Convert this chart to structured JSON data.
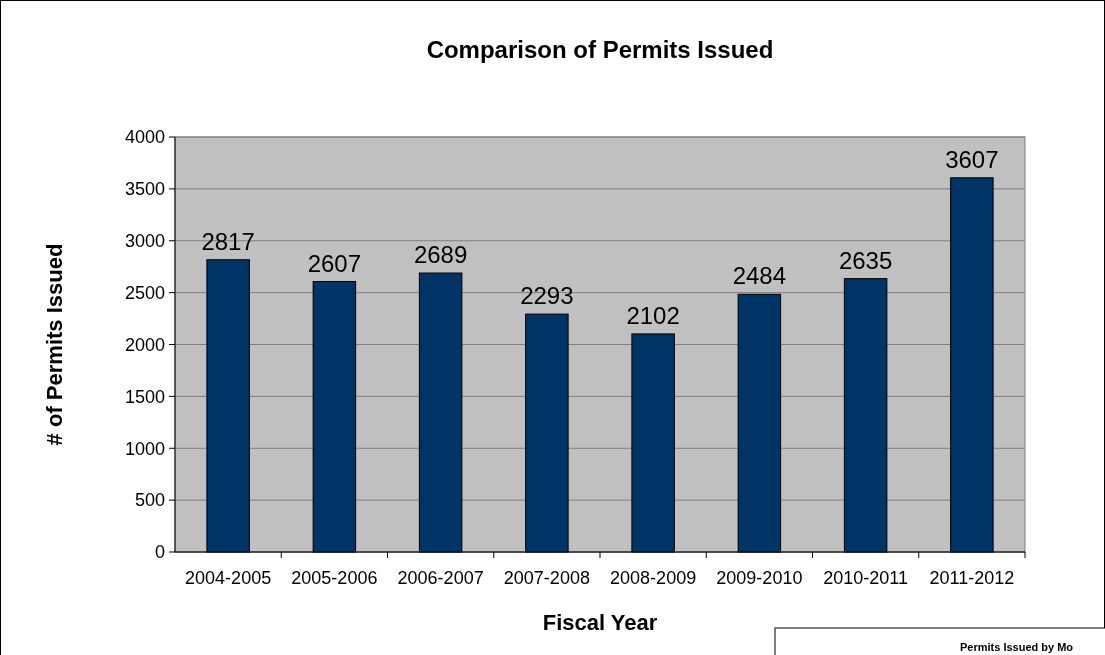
{
  "chart_data": {
    "type": "bar",
    "title": "Comparison of Permits Issued",
    "xlabel": "Fiscal Year",
    "ylabel": "# of Permits Issued",
    "categories": [
      "2004-2005",
      "2005-2006",
      "2006-2007",
      "2007-2008",
      "2008-2009",
      "2009-2010",
      "2010-2011",
      "2011-2012"
    ],
    "values": [
      2817,
      2607,
      2689,
      2293,
      2102,
      2484,
      2635,
      3607
    ],
    "color": "#003366",
    "ylim": [
      0,
      4000
    ],
    "yticks": [
      0,
      500,
      1000,
      1500,
      2000,
      2500,
      3000,
      3500,
      4000
    ],
    "grid": "y",
    "data_labels": true,
    "annotations": [
      "Permits Issued by Mo"
    ]
  }
}
